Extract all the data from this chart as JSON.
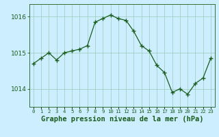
{
  "x": [
    0,
    1,
    2,
    3,
    4,
    5,
    6,
    7,
    8,
    9,
    10,
    11,
    12,
    13,
    14,
    15,
    16,
    17,
    18,
    19,
    20,
    21,
    22,
    23
  ],
  "y": [
    1014.7,
    1014.85,
    1015.0,
    1014.8,
    1015.0,
    1015.05,
    1015.1,
    1015.2,
    1015.85,
    1015.95,
    1016.05,
    1015.95,
    1015.9,
    1015.6,
    1015.2,
    1015.05,
    1014.65,
    1014.45,
    1013.9,
    1014.0,
    1013.85,
    1014.15,
    1014.3,
    1014.85
  ],
  "line_color": "#1a5c1a",
  "marker": "+",
  "marker_size": 4,
  "background_color": "#cceeff",
  "grid_color": "#99ccbb",
  "ylabel_ticks": [
    1014,
    1015,
    1016
  ],
  "xlabel_label": "Graphe pression niveau de la mer (hPa)",
  "ylim": [
    1013.5,
    1016.35
  ],
  "xlim": [
    -0.5,
    23.5
  ],
  "tick_fontsize": 6.5,
  "label_fontsize": 7.5
}
